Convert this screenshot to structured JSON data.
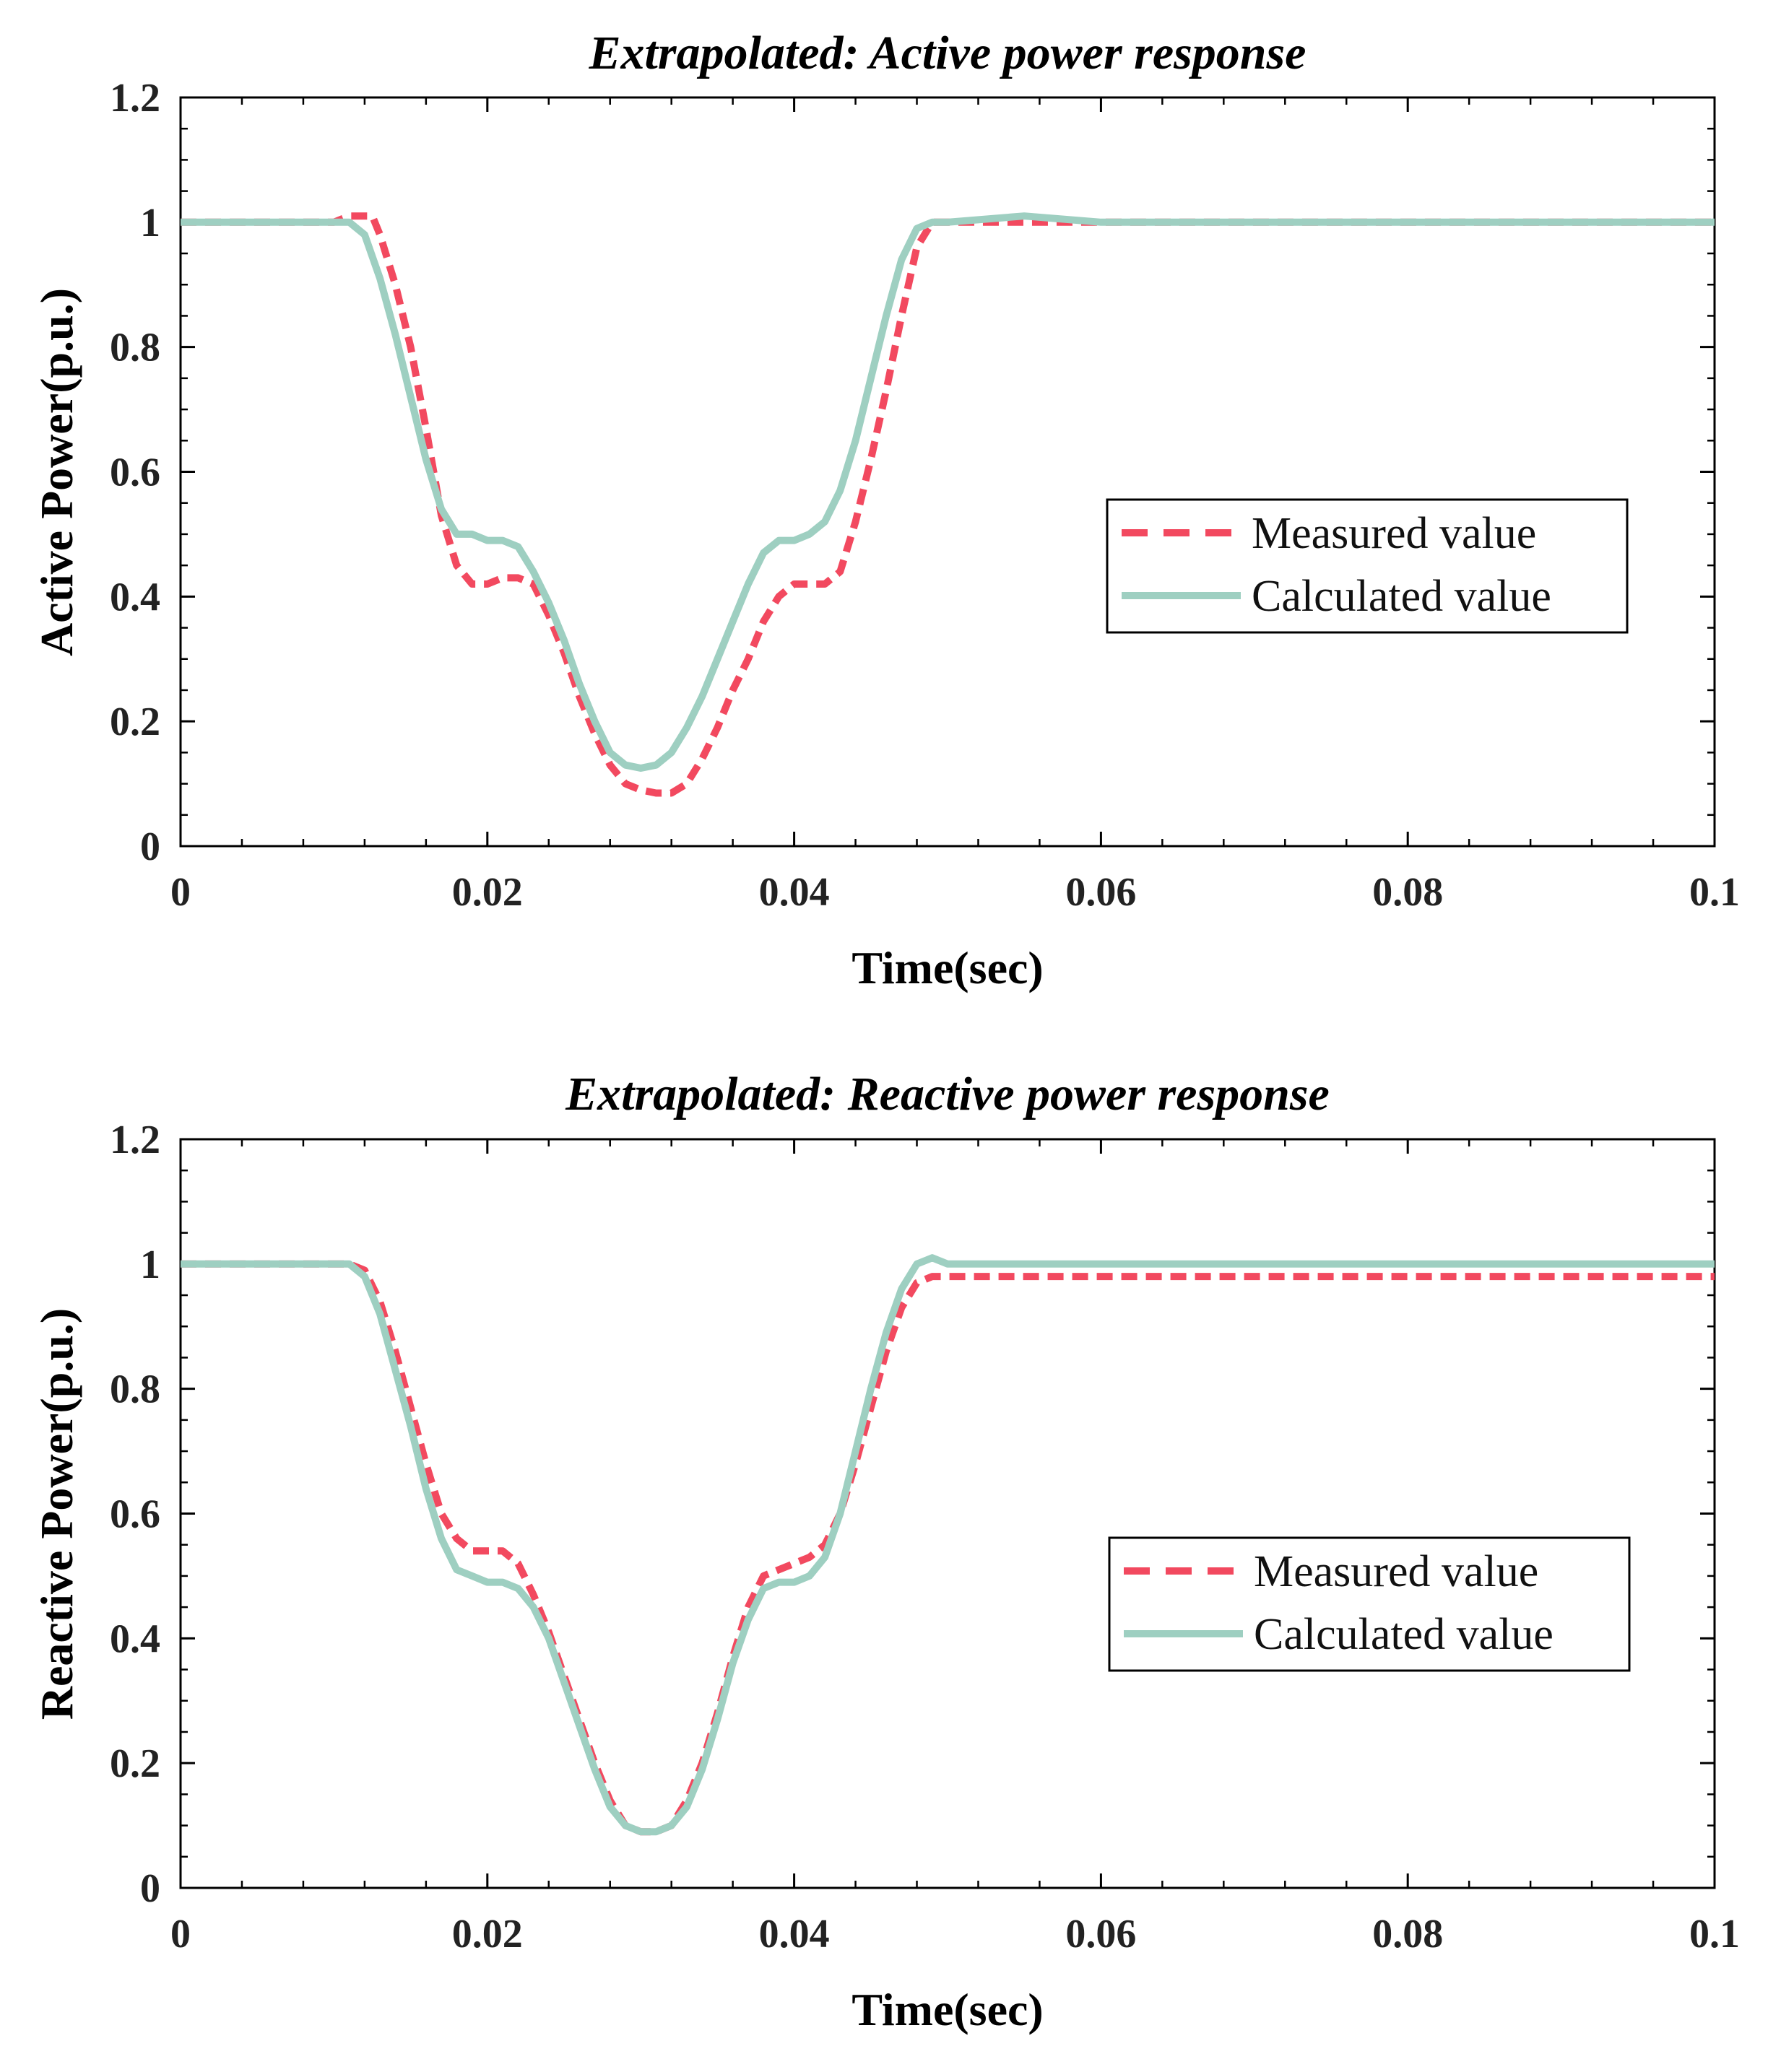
{
  "colors": {
    "measured": "#f2495f",
    "calculated": "#9ecfc1",
    "axis": "#000000"
  },
  "chart_data": [
    {
      "type": "line",
      "title": "Extrapolated: Active power response",
      "xlabel": "Time(sec)",
      "ylabel": "Active Power(p.u.)",
      "xlim": [
        0,
        0.1
      ],
      "ylim": [
        0,
        1.2
      ],
      "xticks": [
        0,
        0.02,
        0.04,
        0.06,
        0.08,
        0.1
      ],
      "xtick_labels": [
        "0",
        "0.02",
        "0.04",
        "0.06",
        "0.08",
        "0.1"
      ],
      "yticks": [
        0,
        0.2,
        0.4,
        0.6,
        0.8,
        1,
        1.2
      ],
      "ytick_labels": [
        "0",
        "0.2",
        "0.4",
        "0.6",
        "0.8",
        "1",
        "1.2"
      ],
      "legend": {
        "position": "center-right",
        "entries": [
          "Measured value",
          "Calculated value"
        ]
      },
      "series": [
        {
          "name": "Measured value",
          "style": "dashed",
          "x": [
            0,
            0.002,
            0.004,
            0.006,
            0.008,
            0.01,
            0.011,
            0.0125,
            0.013,
            0.014,
            0.015,
            0.016,
            0.017,
            0.018,
            0.019,
            0.02,
            0.021,
            0.022,
            0.023,
            0.024,
            0.025,
            0.026,
            0.027,
            0.028,
            0.029,
            0.03,
            0.031,
            0.032,
            0.033,
            0.034,
            0.035,
            0.036,
            0.037,
            0.038,
            0.039,
            0.04,
            0.041,
            0.042,
            0.043,
            0.044,
            0.045,
            0.046,
            0.047,
            0.048,
            0.049,
            0.05,
            0.055,
            0.06,
            0.07,
            0.08,
            0.09,
            0.1
          ],
          "y": [
            1.0,
            1.0,
            1.0,
            1.0,
            1.0,
            1.0,
            1.01,
            1.01,
            0.98,
            0.9,
            0.8,
            0.67,
            0.53,
            0.45,
            0.42,
            0.42,
            0.43,
            0.43,
            0.42,
            0.37,
            0.31,
            0.24,
            0.18,
            0.13,
            0.1,
            0.09,
            0.085,
            0.085,
            0.1,
            0.14,
            0.19,
            0.25,
            0.3,
            0.36,
            0.4,
            0.42,
            0.42,
            0.42,
            0.44,
            0.52,
            0.62,
            0.73,
            0.85,
            0.96,
            1.0,
            1.0,
            1.0,
            1.0,
            1.0,
            1.0,
            1.0,
            1.0
          ]
        },
        {
          "name": "Calculated value",
          "style": "solid",
          "x": [
            0,
            0.002,
            0.004,
            0.006,
            0.008,
            0.01,
            0.011,
            0.012,
            0.013,
            0.014,
            0.015,
            0.016,
            0.017,
            0.018,
            0.019,
            0.02,
            0.021,
            0.022,
            0.023,
            0.024,
            0.025,
            0.026,
            0.027,
            0.028,
            0.029,
            0.03,
            0.031,
            0.032,
            0.033,
            0.034,
            0.035,
            0.036,
            0.037,
            0.038,
            0.039,
            0.04,
            0.041,
            0.042,
            0.043,
            0.044,
            0.045,
            0.046,
            0.047,
            0.048,
            0.049,
            0.05,
            0.055,
            0.06,
            0.07,
            0.08,
            0.09,
            0.1
          ],
          "y": [
            1.0,
            1.0,
            1.0,
            1.0,
            1.0,
            1.0,
            1.0,
            0.98,
            0.91,
            0.82,
            0.72,
            0.62,
            0.54,
            0.5,
            0.5,
            0.49,
            0.49,
            0.48,
            0.44,
            0.39,
            0.33,
            0.26,
            0.2,
            0.15,
            0.13,
            0.125,
            0.13,
            0.15,
            0.19,
            0.24,
            0.3,
            0.36,
            0.42,
            0.47,
            0.49,
            0.49,
            0.5,
            0.52,
            0.57,
            0.65,
            0.75,
            0.85,
            0.94,
            0.99,
            1.0,
            1.0,
            1.01,
            1.0,
            1.0,
            1.0,
            1.0,
            1.0
          ]
        }
      ]
    },
    {
      "type": "line",
      "title": "Extrapolated: Reactive power response",
      "xlabel": "Time(sec)",
      "ylabel": "Reactive Power(p.u.)",
      "xlim": [
        0,
        0.1
      ],
      "ylim": [
        0,
        1.2
      ],
      "xticks": [
        0,
        0.02,
        0.04,
        0.06,
        0.08,
        0.1
      ],
      "xtick_labels": [
        "0",
        "0.02",
        "0.04",
        "0.06",
        "0.08",
        "0.1"
      ],
      "yticks": [
        0,
        0.2,
        0.4,
        0.6,
        0.8,
        1,
        1.2
      ],
      "ytick_labels": [
        "0",
        "0.2",
        "0.4",
        "0.6",
        "0.8",
        "1",
        "1.2"
      ],
      "legend": {
        "position": "center-right",
        "entries": [
          "Measured value",
          "Calculated value"
        ]
      },
      "series": [
        {
          "name": "Measured value",
          "style": "dashed",
          "x": [
            0,
            0.002,
            0.004,
            0.006,
            0.008,
            0.01,
            0.011,
            0.012,
            0.013,
            0.014,
            0.015,
            0.016,
            0.017,
            0.018,
            0.019,
            0.02,
            0.021,
            0.022,
            0.023,
            0.024,
            0.025,
            0.026,
            0.027,
            0.028,
            0.029,
            0.03,
            0.031,
            0.032,
            0.033,
            0.034,
            0.035,
            0.036,
            0.037,
            0.038,
            0.039,
            0.04,
            0.041,
            0.042,
            0.043,
            0.044,
            0.045,
            0.046,
            0.047,
            0.048,
            0.049,
            0.05,
            0.055,
            0.06,
            0.07,
            0.08,
            0.09,
            0.1
          ],
          "y": [
            1.0,
            1.0,
            1.0,
            1.0,
            1.0,
            1.0,
            1.0,
            0.99,
            0.94,
            0.86,
            0.77,
            0.68,
            0.6,
            0.56,
            0.54,
            0.54,
            0.54,
            0.52,
            0.47,
            0.41,
            0.34,
            0.27,
            0.2,
            0.14,
            0.1,
            0.09,
            0.09,
            0.1,
            0.14,
            0.2,
            0.28,
            0.37,
            0.45,
            0.5,
            0.51,
            0.52,
            0.53,
            0.55,
            0.6,
            0.68,
            0.77,
            0.86,
            0.93,
            0.97,
            0.98,
            0.98,
            0.98,
            0.98,
            0.98,
            0.98,
            0.98,
            0.98
          ]
        },
        {
          "name": "Calculated value",
          "style": "solid",
          "x": [
            0,
            0.002,
            0.004,
            0.006,
            0.008,
            0.01,
            0.011,
            0.012,
            0.013,
            0.014,
            0.015,
            0.016,
            0.017,
            0.018,
            0.019,
            0.02,
            0.021,
            0.022,
            0.023,
            0.024,
            0.025,
            0.026,
            0.027,
            0.028,
            0.029,
            0.03,
            0.031,
            0.032,
            0.033,
            0.034,
            0.035,
            0.036,
            0.037,
            0.038,
            0.039,
            0.04,
            0.041,
            0.042,
            0.043,
            0.044,
            0.045,
            0.046,
            0.047,
            0.048,
            0.049,
            0.05,
            0.055,
            0.06,
            0.07,
            0.08,
            0.09,
            0.1
          ],
          "y": [
            1.0,
            1.0,
            1.0,
            1.0,
            1.0,
            1.0,
            1.0,
            0.98,
            0.92,
            0.83,
            0.74,
            0.64,
            0.56,
            0.51,
            0.5,
            0.49,
            0.49,
            0.48,
            0.45,
            0.4,
            0.33,
            0.26,
            0.19,
            0.13,
            0.1,
            0.09,
            0.09,
            0.1,
            0.13,
            0.19,
            0.27,
            0.36,
            0.43,
            0.48,
            0.49,
            0.49,
            0.5,
            0.53,
            0.6,
            0.7,
            0.8,
            0.89,
            0.96,
            1.0,
            1.01,
            1.0,
            1.0,
            1.0,
            1.0,
            1.0,
            1.0,
            1.0
          ]
        }
      ]
    }
  ]
}
